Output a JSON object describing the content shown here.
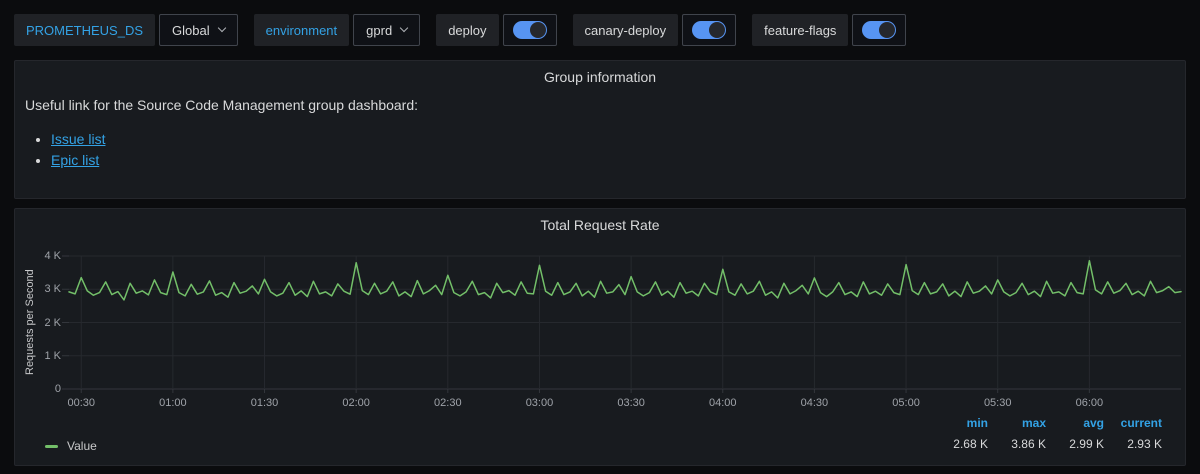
{
  "toolbar": {
    "datasource": {
      "label": "PROMETHEUS_DS",
      "value": "Global"
    },
    "environment": {
      "label": "environment",
      "value": "gprd"
    },
    "toggles": [
      {
        "label": "deploy",
        "state": "on"
      },
      {
        "label": "canary-deploy",
        "state": "on"
      },
      {
        "label": "feature-flags",
        "state": "on"
      }
    ]
  },
  "panels": {
    "group_info": {
      "title": "Group information",
      "body_text": "Useful link for the Source Code Management group dashboard:",
      "links": [
        {
          "label": "Issue list"
        },
        {
          "label": "Epic list"
        }
      ]
    },
    "request_rate": {
      "title": "Total Request Rate",
      "legend": {
        "series_label": "Value",
        "stats": [
          {
            "label": "min",
            "value": "2.68 K"
          },
          {
            "label": "max",
            "value": "3.86 K"
          },
          {
            "label": "avg",
            "value": "2.99 K"
          },
          {
            "label": "current",
            "value": "2.93 K"
          }
        ]
      }
    }
  },
  "colors": {
    "accent_blue": "#33a2e5",
    "toggle_blue": "#5794f2",
    "series_green": "#73bf69",
    "panel_bg": "#181b1f",
    "page_bg": "#0b0c0e"
  },
  "chart_data": {
    "type": "line",
    "title": "Total Request Rate",
    "ylabel": "Requests per Second",
    "xlabel": "",
    "unit": "K requests per second",
    "ylim": [
      0,
      4
    ],
    "x_range_min": [
      26,
      390
    ],
    "grid": true,
    "grid_color": "#26292e",
    "axis_line_color": "#33363c",
    "legend_position": "bottom-left",
    "y_ticks": [
      {
        "value": 0,
        "label": "0"
      },
      {
        "value": 1,
        "label": "1 K"
      },
      {
        "value": 2,
        "label": "2 K"
      },
      {
        "value": 3,
        "label": "3 K"
      },
      {
        "value": 4,
        "label": "4 K"
      }
    ],
    "x_ticks": [
      {
        "min": 30,
        "label": "00:30"
      },
      {
        "min": 60,
        "label": "01:00"
      },
      {
        "min": 90,
        "label": "01:30"
      },
      {
        "min": 120,
        "label": "02:00"
      },
      {
        "min": 150,
        "label": "02:30"
      },
      {
        "min": 180,
        "label": "03:00"
      },
      {
        "min": 210,
        "label": "03:30"
      },
      {
        "min": 240,
        "label": "04:00"
      },
      {
        "min": 270,
        "label": "04:30"
      },
      {
        "min": 300,
        "label": "05:00"
      },
      {
        "min": 330,
        "label": "05:30"
      },
      {
        "min": 360,
        "label": "06:00"
      }
    ],
    "series": [
      {
        "name": "Value",
        "color": "#73bf69",
        "x_start_min": 26,
        "x_step_min": 2,
        "values": [
          2.92,
          2.86,
          3.35,
          2.95,
          2.82,
          2.9,
          3.22,
          2.84,
          2.93,
          2.68,
          3.18,
          2.88,
          2.95,
          2.83,
          3.28,
          2.9,
          2.84,
          3.52,
          2.9,
          2.8,
          3.15,
          2.85,
          2.92,
          3.25,
          2.82,
          2.9,
          2.76,
          3.2,
          2.88,
          2.94,
          3.1,
          2.86,
          3.3,
          2.92,
          2.8,
          2.88,
          3.2,
          2.82,
          2.95,
          2.78,
          3.24,
          2.86,
          2.92,
          2.8,
          3.16,
          2.94,
          2.85,
          3.8,
          2.96,
          2.84,
          3.18,
          2.86,
          2.94,
          3.22,
          2.8,
          2.92,
          2.78,
          3.26,
          2.86,
          2.96,
          3.12,
          2.84,
          3.42,
          2.9,
          2.8,
          2.92,
          3.24,
          2.84,
          2.9,
          2.74,
          3.18,
          2.9,
          2.96,
          2.82,
          3.22,
          2.88,
          2.86,
          3.72,
          2.94,
          2.82,
          3.2,
          2.84,
          2.92,
          3.18,
          2.8,
          2.94,
          2.76,
          3.24,
          2.88,
          2.92,
          3.14,
          2.84,
          3.38,
          2.92,
          2.8,
          2.9,
          3.22,
          2.82,
          2.94,
          2.76,
          3.2,
          2.88,
          2.94,
          2.8,
          3.18,
          2.92,
          2.84,
          3.6,
          2.92,
          2.82,
          3.16,
          2.86,
          2.94,
          3.24,
          2.82,
          2.92,
          2.74,
          3.18,
          2.86,
          2.96,
          3.12,
          2.86,
          3.34,
          2.9,
          2.78,
          2.92,
          3.2,
          2.84,
          2.92,
          2.78,
          3.22,
          2.86,
          2.94,
          2.82,
          3.16,
          2.9,
          2.84,
          3.74,
          2.96,
          2.84,
          3.2,
          2.86,
          2.92,
          3.16,
          2.8,
          2.94,
          2.78,
          3.22,
          2.88,
          2.94,
          3.1,
          2.86,
          3.28,
          2.92,
          2.8,
          2.9,
          3.18,
          2.84,
          2.94,
          2.78,
          3.24,
          2.88,
          2.92,
          2.8,
          3.2,
          2.9,
          2.86,
          3.86,
          2.98,
          2.86,
          3.22,
          2.88,
          2.96,
          3.18,
          2.84,
          2.94,
          2.8,
          3.24,
          2.9,
          2.96,
          3.08,
          2.9,
          2.93
        ]
      }
    ],
    "stats": {
      "min": "2.68 K",
      "max": "3.86 K",
      "avg": "2.99 K",
      "current": "2.93 K"
    }
  }
}
